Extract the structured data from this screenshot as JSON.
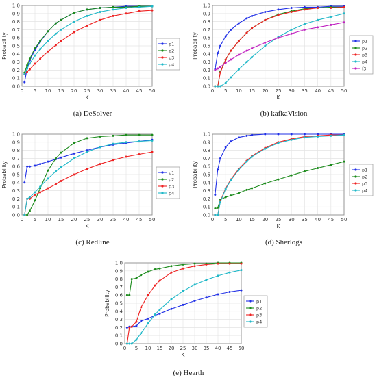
{
  "colors": {
    "p1": "#1f2fe6",
    "p2": "#1a8a1a",
    "p3": "#ee2222",
    "p4": "#20b8c8",
    "f3": "#c020c0"
  },
  "chart_data": [
    {
      "type": "line",
      "caption": "(a) DeSolver",
      "xlabel": "K",
      "ylabel": "Probability",
      "xlim": [
        0,
        50
      ],
      "ylim": [
        0,
        1.0
      ],
      "xticks": [
        0,
        5,
        10,
        15,
        20,
        25,
        30,
        35,
        40,
        45,
        50
      ],
      "yticks": [
        0.0,
        0.1,
        0.2,
        0.3,
        0.4,
        0.5,
        0.6,
        0.7,
        0.8,
        0.9,
        1.0
      ],
      "legend_position": "right",
      "series": [
        {
          "name": "p1",
          "color": "#1f2fe6",
          "x": [
            1,
            2,
            3,
            5,
            7,
            10,
            13,
            15,
            20,
            25,
            30,
            35,
            40,
            45,
            50
          ],
          "y": [
            0.05,
            0.22,
            0.32,
            0.45,
            0.55,
            0.68,
            0.78,
            0.82,
            0.91,
            0.95,
            0.97,
            0.98,
            0.99,
            0.99,
            0.99
          ]
        },
        {
          "name": "p2",
          "color": "#1a8a1a",
          "x": [
            1,
            2,
            3,
            5,
            7,
            10,
            13,
            15,
            20,
            25,
            30,
            35,
            40,
            45,
            50
          ],
          "y": [
            0.17,
            0.26,
            0.34,
            0.47,
            0.56,
            0.68,
            0.78,
            0.82,
            0.91,
            0.95,
            0.97,
            0.98,
            0.98,
            0.99,
            0.99
          ]
        },
        {
          "name": "p3",
          "color": "#ee2222",
          "x": [
            1,
            2,
            3,
            5,
            7,
            10,
            13,
            15,
            20,
            25,
            30,
            35,
            40,
            45,
            50
          ],
          "y": [
            0.15,
            0.18,
            0.21,
            0.28,
            0.34,
            0.43,
            0.51,
            0.56,
            0.67,
            0.75,
            0.82,
            0.87,
            0.9,
            0.93,
            0.94
          ]
        },
        {
          "name": "p4",
          "color": "#20b8c8",
          "x": [
            1,
            2,
            3,
            5,
            7,
            10,
            13,
            15,
            20,
            25,
            30,
            35,
            40,
            45,
            50
          ],
          "y": [
            0.15,
            0.22,
            0.28,
            0.38,
            0.46,
            0.56,
            0.65,
            0.7,
            0.8,
            0.87,
            0.92,
            0.95,
            0.97,
            0.98,
            0.99
          ]
        }
      ]
    },
    {
      "type": "line",
      "caption": "(b) kafkaVision",
      "xlabel": "K",
      "ylabel": "Probability",
      "xlim": [
        0,
        50
      ],
      "ylim": [
        0,
        1.0
      ],
      "xticks": [
        0,
        5,
        10,
        15,
        20,
        25,
        30,
        35,
        40,
        45,
        50
      ],
      "yticks": [
        0.0,
        0.1,
        0.2,
        0.3,
        0.4,
        0.5,
        0.6,
        0.7,
        0.8,
        0.9,
        1.0
      ],
      "legend_position": "right",
      "series": [
        {
          "name": "p1",
          "color": "#1f2fe6",
          "x": [
            1,
            2,
            3,
            5,
            7,
            10,
            13,
            15,
            20,
            25,
            30,
            35,
            40,
            45,
            50
          ],
          "y": [
            0.21,
            0.41,
            0.5,
            0.62,
            0.7,
            0.78,
            0.84,
            0.87,
            0.92,
            0.95,
            0.97,
            0.98,
            0.98,
            0.99,
            0.99
          ]
        },
        {
          "name": "p2",
          "color": "#1a8a1a",
          "x": [
            1,
            2,
            3,
            5,
            7,
            10,
            13,
            15,
            20,
            25,
            30,
            35,
            40,
            45,
            50
          ],
          "y": [
            0.0,
            0.0,
            0.18,
            0.33,
            0.44,
            0.56,
            0.66,
            0.72,
            0.82,
            0.89,
            0.93,
            0.96,
            0.97,
            0.98,
            0.98
          ]
        },
        {
          "name": "p3",
          "color": "#ee2222",
          "x": [
            1,
            2,
            3,
            5,
            7,
            10,
            13,
            15,
            20,
            25,
            30,
            35,
            40,
            45,
            50
          ],
          "y": [
            0.0,
            0.0,
            0.17,
            0.33,
            0.44,
            0.56,
            0.66,
            0.72,
            0.82,
            0.88,
            0.92,
            0.95,
            0.97,
            0.97,
            0.98
          ]
        },
        {
          "name": "p4",
          "color": "#20b8c8",
          "x": [
            1,
            2,
            3,
            5,
            7,
            10,
            13,
            15,
            20,
            25,
            30,
            35,
            40,
            45,
            50
          ],
          "y": [
            0.0,
            0.0,
            0.0,
            0.04,
            0.11,
            0.21,
            0.3,
            0.36,
            0.5,
            0.61,
            0.7,
            0.77,
            0.82,
            0.86,
            0.9
          ]
        },
        {
          "name": "f3",
          "color": "#c020c0",
          "x": [
            1,
            2,
            3,
            5,
            7,
            10,
            13,
            15,
            20,
            25,
            30,
            35,
            40,
            45,
            50
          ],
          "y": [
            0.2,
            0.22,
            0.24,
            0.29,
            0.33,
            0.39,
            0.44,
            0.47,
            0.54,
            0.6,
            0.65,
            0.7,
            0.73,
            0.76,
            0.79
          ]
        }
      ]
    },
    {
      "type": "line",
      "caption": "(c) Redline",
      "xlabel": "K",
      "ylabel": "Probability",
      "xlim": [
        0,
        50
      ],
      "ylim": [
        0,
        1.0
      ],
      "xticks": [
        0,
        5,
        10,
        15,
        20,
        25,
        30,
        35,
        40,
        45,
        50
      ],
      "yticks": [
        0.0,
        0.1,
        0.2,
        0.3,
        0.4,
        0.5,
        0.6,
        0.7,
        0.8,
        0.9,
        1.0
      ],
      "legend_position": "right",
      "series": [
        {
          "name": "p1",
          "color": "#1f2fe6",
          "x": [
            1,
            2,
            3,
            5,
            7,
            10,
            13,
            15,
            20,
            25,
            30,
            35,
            40,
            45,
            50
          ],
          "y": [
            0.4,
            0.6,
            0.6,
            0.61,
            0.63,
            0.66,
            0.69,
            0.71,
            0.76,
            0.8,
            0.84,
            0.87,
            0.89,
            0.91,
            0.93
          ]
        },
        {
          "name": "p2",
          "color": "#1a8a1a",
          "x": [
            1,
            2,
            3,
            5,
            7,
            10,
            13,
            15,
            20,
            25,
            30,
            35,
            40,
            45,
            50
          ],
          "y": [
            0.0,
            0.0,
            0.05,
            0.18,
            0.33,
            0.55,
            0.7,
            0.77,
            0.89,
            0.95,
            0.97,
            0.98,
            0.99,
            0.99,
            0.99
          ]
        },
        {
          "name": "p3",
          "color": "#ee2222",
          "x": [
            1,
            2,
            3,
            5,
            7,
            10,
            13,
            15,
            20,
            25,
            30,
            35,
            40,
            45,
            50
          ],
          "y": [
            0.0,
            0.2,
            0.2,
            0.25,
            0.28,
            0.33,
            0.38,
            0.42,
            0.5,
            0.57,
            0.63,
            0.68,
            0.72,
            0.75,
            0.78
          ]
        },
        {
          "name": "p4",
          "color": "#20b8c8",
          "x": [
            1,
            2,
            3,
            5,
            7,
            10,
            13,
            15,
            20,
            25,
            30,
            35,
            40,
            45,
            50
          ],
          "y": [
            0.0,
            0.2,
            0.22,
            0.28,
            0.35,
            0.45,
            0.54,
            0.59,
            0.7,
            0.78,
            0.84,
            0.88,
            0.9,
            0.91,
            0.92
          ]
        }
      ]
    },
    {
      "type": "line",
      "caption": "(d) Sherlogs",
      "xlabel": "K",
      "ylabel": "Probability",
      "xlim": [
        0,
        50
      ],
      "ylim": [
        0,
        1.0
      ],
      "xticks": [
        0,
        5,
        10,
        15,
        20,
        25,
        30,
        35,
        40,
        45,
        50
      ],
      "yticks": [
        0.0,
        0.1,
        0.2,
        0.3,
        0.4,
        0.5,
        0.6,
        0.7,
        0.8,
        0.9,
        1.0
      ],
      "legend_position": "right",
      "series": [
        {
          "name": "p1",
          "color": "#1f2fe6",
          "x": [
            1,
            2,
            3,
            5,
            7,
            10,
            13,
            15,
            20,
            25,
            30,
            35,
            40,
            45,
            50
          ],
          "y": [
            0.25,
            0.56,
            0.7,
            0.84,
            0.91,
            0.96,
            0.98,
            0.99,
            1.0,
            1.0,
            1.0,
            1.0,
            1.0,
            1.0,
            1.0
          ]
        },
        {
          "name": "p2",
          "color": "#1a8a1a",
          "x": [
            1,
            2,
            3,
            5,
            7,
            10,
            13,
            15,
            20,
            25,
            30,
            35,
            40,
            45,
            50
          ],
          "y": [
            0.08,
            0.09,
            0.19,
            0.22,
            0.24,
            0.27,
            0.31,
            0.33,
            0.39,
            0.44,
            0.49,
            0.54,
            0.58,
            0.62,
            0.66
          ]
        },
        {
          "name": "p3",
          "color": "#ee2222",
          "x": [
            1,
            2,
            3,
            5,
            7,
            10,
            13,
            15,
            20,
            25,
            30,
            35,
            40,
            45,
            50
          ],
          "y": [
            0.0,
            0.0,
            0.17,
            0.33,
            0.44,
            0.57,
            0.67,
            0.73,
            0.83,
            0.9,
            0.94,
            0.97,
            0.98,
            0.99,
            0.99
          ]
        },
        {
          "name": "p4",
          "color": "#20b8c8",
          "x": [
            1,
            2,
            3,
            5,
            7,
            10,
            13,
            15,
            20,
            25,
            30,
            35,
            40,
            45,
            50
          ],
          "y": [
            0.0,
            0.0,
            0.16,
            0.32,
            0.43,
            0.56,
            0.66,
            0.72,
            0.82,
            0.89,
            0.93,
            0.96,
            0.97,
            0.98,
            0.99
          ]
        }
      ]
    },
    {
      "type": "line",
      "caption": "(e) Hearth",
      "xlabel": "K",
      "ylabel": "Probability",
      "xlim": [
        0,
        50
      ],
      "ylim": [
        0,
        1.0
      ],
      "xticks": [
        0,
        5,
        10,
        15,
        20,
        25,
        30,
        35,
        40,
        45,
        50
      ],
      "yticks": [
        0.0,
        0.1,
        0.2,
        0.3,
        0.4,
        0.5,
        0.6,
        0.7,
        0.8,
        0.9,
        1.0
      ],
      "legend_position": "right",
      "series": [
        {
          "name": "p1",
          "color": "#1f2fe6",
          "x": [
            1,
            2,
            3,
            5,
            7,
            10,
            13,
            15,
            20,
            25,
            30,
            35,
            40,
            45,
            50
          ],
          "y": [
            0.2,
            0.21,
            0.21,
            0.22,
            0.28,
            0.31,
            0.35,
            0.37,
            0.43,
            0.48,
            0.53,
            0.57,
            0.61,
            0.64,
            0.66
          ]
        },
        {
          "name": "p2",
          "color": "#1a8a1a",
          "x": [
            1,
            2,
            3,
            5,
            7,
            10,
            13,
            15,
            20,
            25,
            30,
            35,
            40,
            45,
            50
          ],
          "y": [
            0.6,
            0.6,
            0.8,
            0.81,
            0.85,
            0.89,
            0.92,
            0.93,
            0.96,
            0.98,
            0.99,
            0.99,
            1.0,
            1.0,
            1.0
          ]
        },
        {
          "name": "p3",
          "color": "#ee2222",
          "x": [
            1,
            2,
            3,
            5,
            7,
            10,
            13,
            15,
            20,
            25,
            30,
            35,
            40,
            45,
            50
          ],
          "y": [
            0.0,
            0.2,
            0.21,
            0.27,
            0.45,
            0.6,
            0.72,
            0.78,
            0.88,
            0.93,
            0.96,
            0.98,
            0.99,
            0.99,
            0.99
          ]
        },
        {
          "name": "p4",
          "color": "#20b8c8",
          "x": [
            1,
            2,
            3,
            5,
            7,
            10,
            13,
            15,
            20,
            25,
            30,
            35,
            40,
            45,
            50
          ],
          "y": [
            0.0,
            0.0,
            0.0,
            0.05,
            0.13,
            0.25,
            0.36,
            0.42,
            0.55,
            0.65,
            0.73,
            0.79,
            0.84,
            0.88,
            0.91
          ]
        }
      ]
    }
  ]
}
